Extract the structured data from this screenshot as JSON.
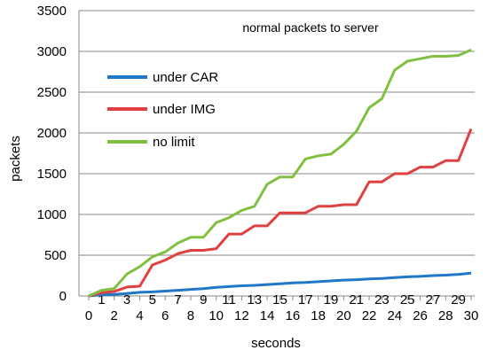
{
  "chart_data": {
    "type": "line",
    "title": "normal packets to server",
    "xlabel": "seconds",
    "ylabel": "packets",
    "xlim": [
      0,
      30
    ],
    "ylim": [
      0,
      3500
    ],
    "x_ticks": [
      0,
      2,
      4,
      6,
      8,
      10,
      12,
      14,
      16,
      18,
      20,
      22,
      24,
      26,
      28,
      30
    ],
    "x_ticks_odd": [
      1,
      3,
      5,
      7,
      9,
      11,
      13,
      15,
      17,
      19,
      21,
      23,
      25,
      27,
      29
    ],
    "y_ticks": [
      0,
      500,
      1000,
      1500,
      2000,
      2500,
      3000,
      3500
    ],
    "grid": "horizontal",
    "legend_position": "top-left",
    "x": [
      0,
      1,
      2,
      3,
      4,
      5,
      6,
      7,
      8,
      9,
      10,
      11,
      12,
      13,
      14,
      15,
      16,
      17,
      18,
      19,
      20,
      21,
      22,
      23,
      24,
      25,
      26,
      27,
      28,
      29,
      30
    ],
    "series": [
      {
        "name": "under CAR",
        "color": "#1f77c8",
        "values": [
          0,
          15,
          20,
          30,
          45,
          50,
          60,
          70,
          80,
          90,
          105,
          115,
          125,
          130,
          140,
          150,
          160,
          165,
          175,
          185,
          195,
          200,
          210,
          215,
          225,
          235,
          240,
          250,
          255,
          265,
          280
        ]
      },
      {
        "name": "under IMG",
        "color": "#e04040",
        "values": [
          0,
          40,
          55,
          110,
          120,
          380,
          440,
          520,
          560,
          560,
          580,
          760,
          760,
          860,
          860,
          1020,
          1020,
          1020,
          1100,
          1100,
          1120,
          1120,
          1400,
          1400,
          1500,
          1500,
          1580,
          1580,
          1660,
          1660,
          2050
        ]
      },
      {
        "name": "no limit",
        "color": "#80c040",
        "values": [
          0,
          70,
          90,
          270,
          360,
          480,
          540,
          650,
          720,
          720,
          900,
          960,
          1050,
          1100,
          1370,
          1460,
          1460,
          1680,
          1720,
          1740,
          1860,
          2020,
          2310,
          2420,
          2770,
          2880,
          2910,
          2940,
          2940,
          2950,
          3020
        ]
      }
    ]
  }
}
